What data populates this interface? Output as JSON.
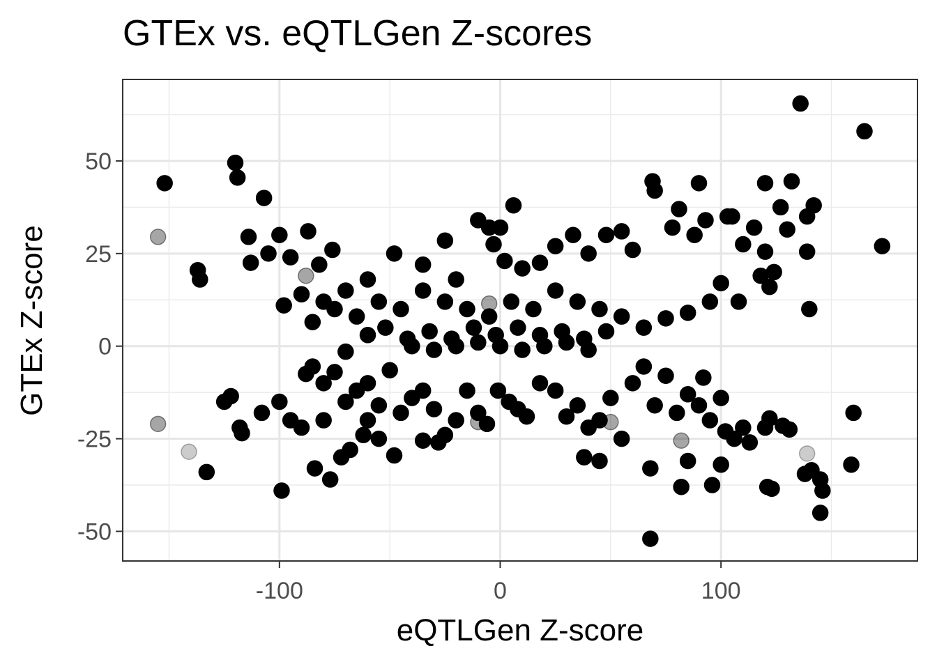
{
  "chart_data": {
    "type": "scatter",
    "title": "GTEx vs. eQTLGen Z-scores",
    "xlabel": "eQTLGen Z-score",
    "ylabel": "GTEx Z-score",
    "xlim": [
      -171,
      189
    ],
    "ylim": [
      -58,
      72
    ],
    "x_ticks": [
      -100,
      0,
      100
    ],
    "x_tick_labels": [
      "-100",
      "0",
      "100"
    ],
    "y_ticks": [
      -50,
      -25,
      0,
      25,
      50
    ],
    "y_tick_labels": [
      "-50",
      "-25",
      "0",
      "25",
      "50"
    ],
    "grid": true,
    "legend": "none",
    "point_color": "#000000",
    "series": [
      {
        "opacity": 1.0,
        "points": [
          [
            -152,
            44
          ],
          [
            -120,
            49.5
          ],
          [
            -119,
            45.5
          ],
          [
            -107,
            40
          ],
          [
            -114,
            29.5
          ],
          [
            -100,
            30
          ],
          [
            -87,
            31
          ],
          [
            -137,
            20.5
          ],
          [
            -136,
            18
          ],
          [
            -113,
            22.5
          ],
          [
            -105,
            25
          ],
          [
            -95,
            24
          ],
          [
            -82,
            22
          ],
          [
            -76,
            26
          ],
          [
            -98,
            11
          ],
          [
            -90,
            14
          ],
          [
            -80,
            12
          ],
          [
            -70,
            15
          ],
          [
            -60,
            18
          ],
          [
            -48,
            25
          ],
          [
            -35,
            22
          ],
          [
            -25,
            28.5
          ],
          [
            -20,
            18
          ],
          [
            -10,
            34
          ],
          [
            -5,
            32
          ],
          [
            0,
            32
          ],
          [
            -3,
            27.5
          ],
          [
            6,
            38
          ],
          [
            2,
            23
          ],
          [
            10,
            21
          ],
          [
            18,
            22.5
          ],
          [
            25,
            27
          ],
          [
            33,
            30
          ],
          [
            40,
            25
          ],
          [
            48,
            30
          ],
          [
            55,
            31
          ],
          [
            60,
            26
          ],
          [
            69,
            44.5
          ],
          [
            70,
            42
          ],
          [
            81,
            37
          ],
          [
            90,
            44
          ],
          [
            78,
            32
          ],
          [
            88,
            30
          ],
          [
            93,
            34
          ],
          [
            103,
            35
          ],
          [
            105,
            35
          ],
          [
            110,
            27.5
          ],
          [
            115,
            32
          ],
          [
            120,
            44
          ],
          [
            120,
            25.5
          ],
          [
            127,
            37.5
          ],
          [
            130,
            31.5
          ],
          [
            132,
            44.5
          ],
          [
            136,
            65.5
          ],
          [
            139,
            35
          ],
          [
            142,
            38
          ],
          [
            139,
            25.5
          ],
          [
            165,
            58
          ],
          [
            173,
            27
          ],
          [
            140,
            10
          ],
          [
            118,
            19
          ],
          [
            124,
            20
          ],
          [
            122,
            16
          ],
          [
            100,
            17
          ],
          [
            108,
            12
          ],
          [
            95,
            12
          ],
          [
            85,
            9
          ],
          [
            75,
            7.5
          ],
          [
            65,
            5
          ],
          [
            55,
            8
          ],
          [
            45,
            10
          ],
          [
            35,
            12
          ],
          [
            25,
            15
          ],
          [
            15,
            10
          ],
          [
            5,
            12
          ],
          [
            -5,
            8
          ],
          [
            -15,
            10
          ],
          [
            -25,
            12
          ],
          [
            -35,
            15
          ],
          [
            -45,
            10
          ],
          [
            -55,
            12
          ],
          [
            -65,
            8
          ],
          [
            -75,
            10
          ],
          [
            -85,
            6.5
          ],
          [
            -52,
            5
          ],
          [
            -42,
            2
          ],
          [
            -32,
            4
          ],
          [
            -22,
            2
          ],
          [
            -12,
            5
          ],
          [
            -2,
            3
          ],
          [
            8,
            5
          ],
          [
            18,
            3
          ],
          [
            28,
            4
          ],
          [
            38,
            2
          ],
          [
            48,
            4
          ],
          [
            -60,
            3
          ],
          [
            -70,
            -1.5
          ],
          [
            -40,
            0
          ],
          [
            -30,
            -1
          ],
          [
            -20,
            0
          ],
          [
            -10,
            1
          ],
          [
            0,
            0
          ],
          [
            10,
            -1
          ],
          [
            20,
            0
          ],
          [
            30,
            1
          ],
          [
            40,
            -1
          ],
          [
            -125,
            -15
          ],
          [
            -122,
            -13.5
          ],
          [
            -118,
            -22
          ],
          [
            -117,
            -23.5
          ],
          [
            -133,
            -34
          ],
          [
            -108,
            -18
          ],
          [
            -100,
            -15
          ],
          [
            -95,
            -20
          ],
          [
            -88,
            -7.5
          ],
          [
            -85,
            -5.5
          ],
          [
            -80,
            -10
          ],
          [
            -75,
            -7
          ],
          [
            -70,
            -15
          ],
          [
            -65,
            -12
          ],
          [
            -60,
            -10
          ],
          [
            -55,
            -16
          ],
          [
            -50,
            -6.5
          ],
          [
            -45,
            -18
          ],
          [
            -40,
            -14
          ],
          [
            -35,
            -12
          ],
          [
            -30,
            -17
          ],
          [
            -25,
            -24
          ],
          [
            -20,
            -20
          ],
          [
            -15,
            -12
          ],
          [
            -10,
            -18
          ],
          [
            -6,
            -21
          ],
          [
            -1,
            -12
          ],
          [
            4,
            -15
          ],
          [
            8,
            -17
          ],
          [
            12,
            -19
          ],
          [
            18,
            -10
          ],
          [
            25,
            -12
          ],
          [
            30,
            -19
          ],
          [
            35,
            -16
          ],
          [
            40,
            -22
          ],
          [
            45,
            -20
          ],
          [
            50,
            -14
          ],
          [
            55,
            -25
          ],
          [
            60,
            -10
          ],
          [
            65,
            -5.5
          ],
          [
            70,
            -16
          ],
          [
            75,
            -8
          ],
          [
            80,
            -18
          ],
          [
            85,
            -13
          ],
          [
            90,
            -16
          ],
          [
            92,
            -8.5
          ],
          [
            95,
            -20
          ],
          [
            100,
            -14
          ],
          [
            102,
            -23
          ],
          [
            106,
            -25
          ],
          [
            110,
            -22
          ],
          [
            113,
            -26
          ],
          [
            120,
            -22
          ],
          [
            122,
            -19.5
          ],
          [
            128,
            -21.5
          ],
          [
            131,
            -22.5
          ],
          [
            160,
            -18
          ],
          [
            159,
            -32
          ],
          [
            138,
            -34.5
          ],
          [
            141,
            -33.5
          ],
          [
            145,
            -36
          ],
          [
            146,
            -39
          ],
          [
            145,
            -45
          ],
          [
            121,
            -38
          ],
          [
            123,
            -38.5
          ],
          [
            100,
            -32
          ],
          [
            96,
            -37.5
          ],
          [
            85,
            -31
          ],
          [
            82,
            -38
          ],
          [
            68,
            -33
          ],
          [
            68,
            -52
          ],
          [
            45,
            -31
          ],
          [
            38,
            -30
          ],
          [
            -48,
            -29.5
          ],
          [
            -55,
            -25
          ],
          [
            -62,
            -24
          ],
          [
            -68,
            -28
          ],
          [
            -72,
            -30
          ],
          [
            -77,
            -36
          ],
          [
            -84,
            -33
          ],
          [
            -99,
            -39
          ],
          [
            -60,
            -20
          ],
          [
            -28,
            -26
          ],
          [
            -35,
            -25.5
          ],
          [
            -90,
            -22
          ],
          [
            -80,
            -20
          ]
        ]
      },
      {
        "opacity": 0.35,
        "points": [
          [
            -155,
            29.5
          ],
          [
            -155,
            -21
          ],
          [
            -88,
            19
          ],
          [
            -5,
            11.5
          ],
          [
            -10,
            -20.5
          ],
          [
            82,
            -25.5
          ],
          [
            50,
            -20.5
          ]
        ]
      },
      {
        "opacity": 0.2,
        "points": [
          [
            -141,
            -28.5
          ],
          [
            139,
            -29
          ]
        ]
      }
    ]
  }
}
